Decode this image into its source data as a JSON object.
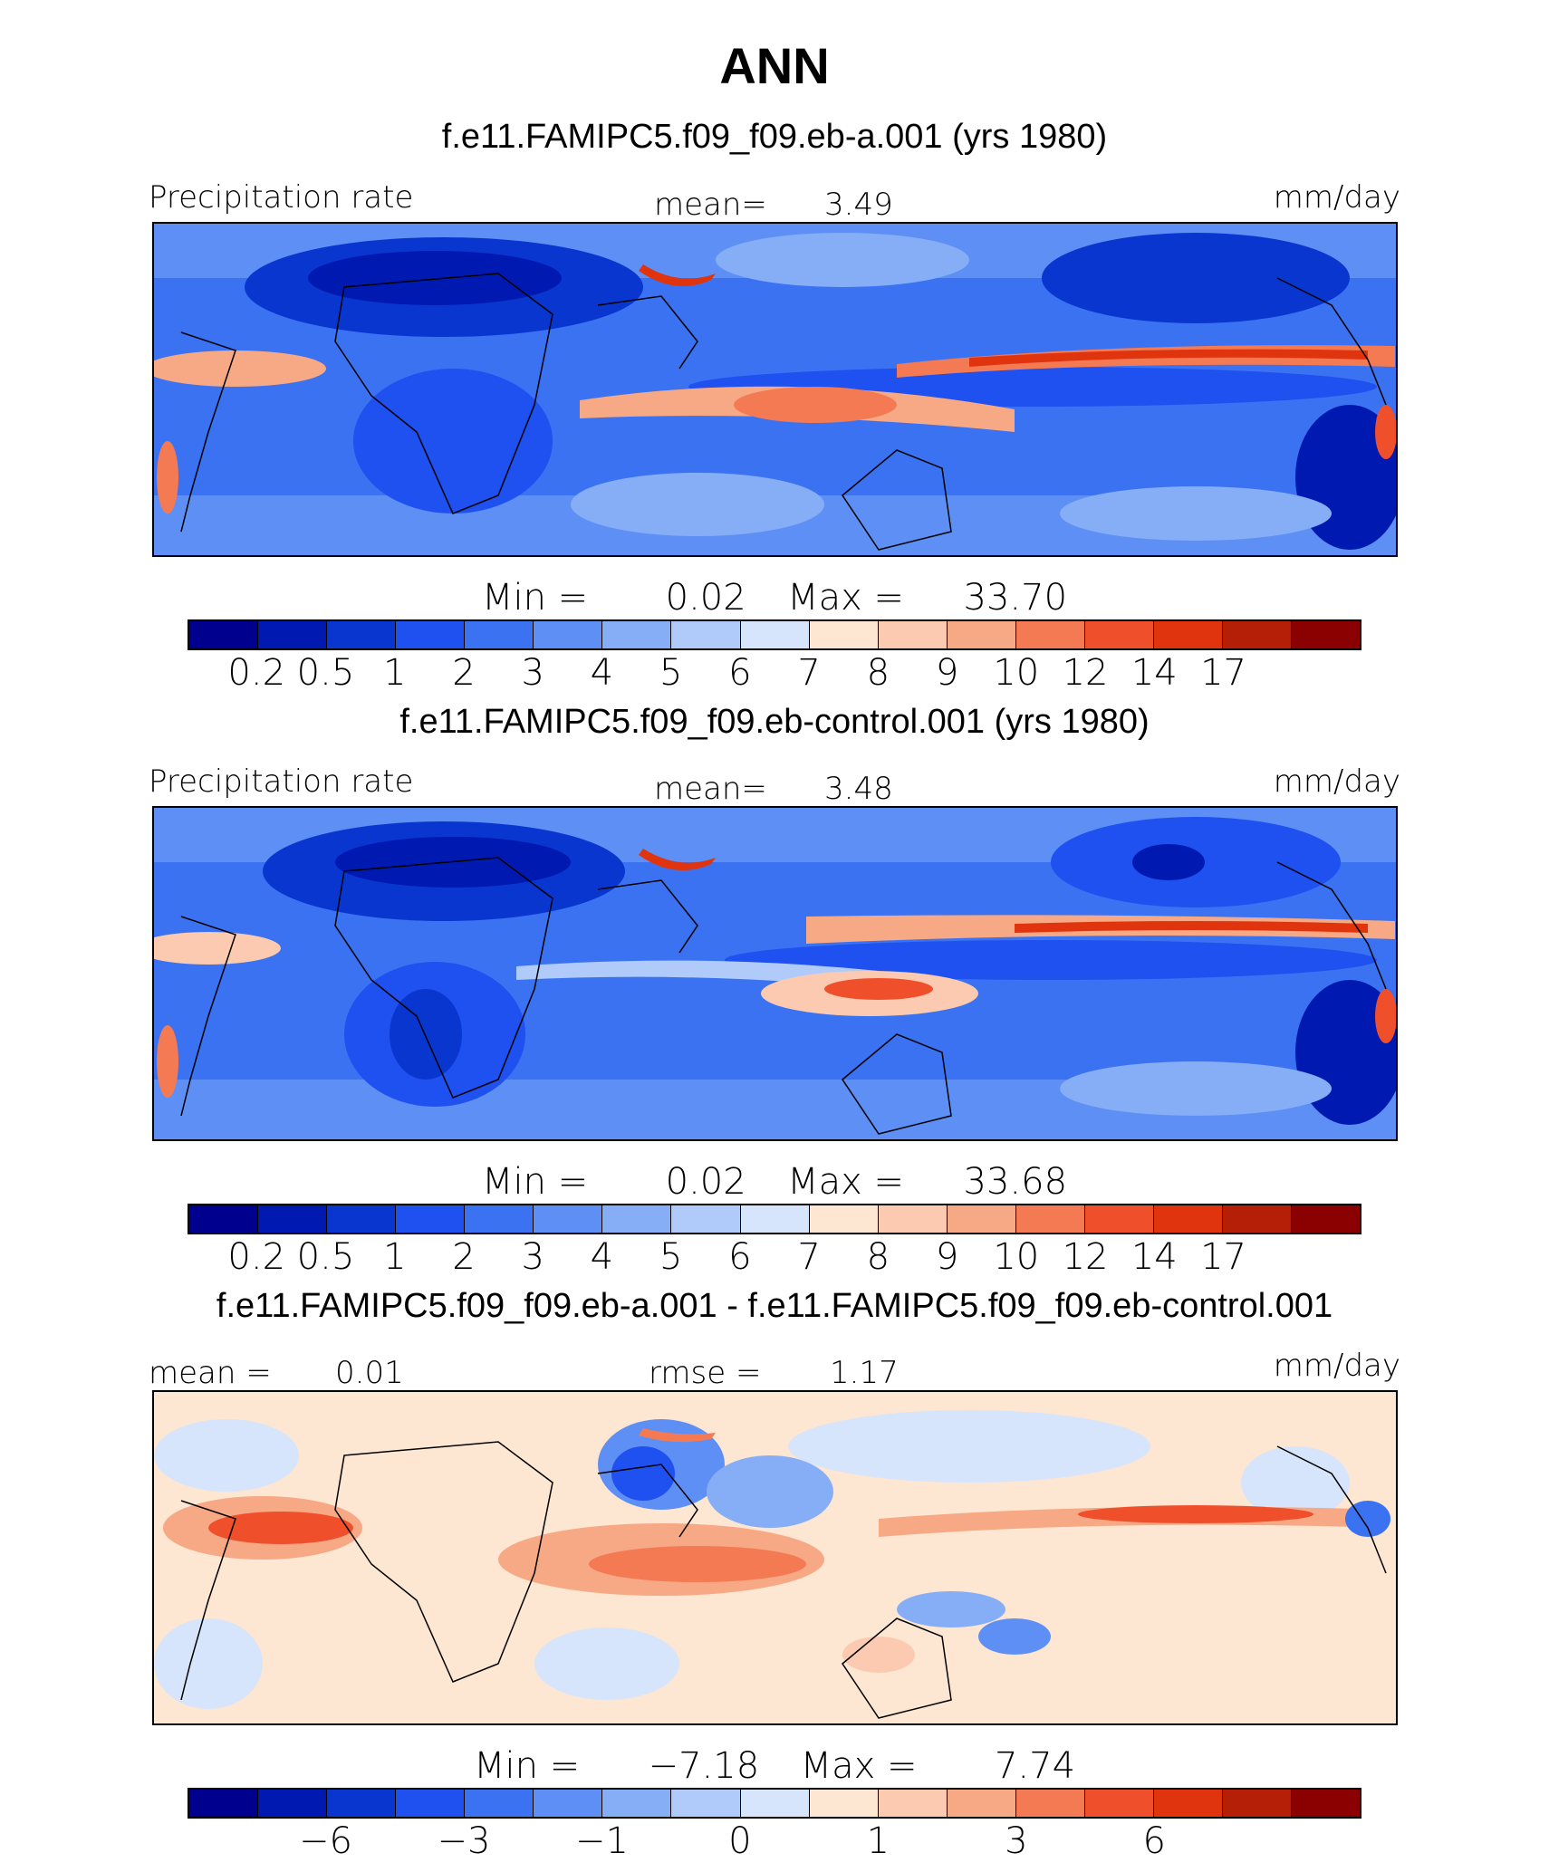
{
  "season_title": "ANN",
  "units": "mm/day",
  "colors": {
    "precip_levels": [
      "#00008f",
      "#0019b0",
      "#0a36d0",
      "#1f50f0",
      "#3a72f2",
      "#5e8ff4",
      "#86aef7",
      "#b0cbfa",
      "#d6e5fb",
      "#fde6d2",
      "#fbcab0",
      "#f7a884",
      "#f47a54",
      "#f04f2c",
      "#e0340f",
      "#b51f08",
      "#8b0000"
    ],
    "diff_levels": [
      "#00008f",
      "#0019b0",
      "#0a36d0",
      "#1f50f0",
      "#3a72f2",
      "#5e8ff4",
      "#86aef7",
      "#b0cbfa",
      "#d6e5fb",
      "#fde6d2",
      "#fbcab0",
      "#f7a884",
      "#f47a54",
      "#f04f2c",
      "#e0340f",
      "#b51f08",
      "#8b0000"
    ]
  },
  "chart_data": [
    {
      "type": "heatmap",
      "panel": "test",
      "case_title": "f.e11.FAMIPC5.f09_f09.eb-a.001 (yrs 1980)",
      "variable_label": "Precipitation rate",
      "mean_label": "mean=",
      "mean_value": "3.49",
      "units": "mm/day",
      "min_label": "Min =",
      "min_value": "0.02",
      "max_label": "Max =",
      "max_value": "33.70",
      "colorbar_ticks": [
        "0.2",
        "0.5",
        "1",
        "2",
        "3",
        "4",
        "5",
        "6",
        "7",
        "8",
        "9",
        "10",
        "12",
        "14",
        "17"
      ],
      "colorbar_levels": [
        0.2,
        0.5,
        1,
        2,
        3,
        4,
        5,
        6,
        7,
        8,
        9,
        10,
        12,
        14,
        17
      ]
    },
    {
      "type": "heatmap",
      "panel": "control",
      "case_title": "f.e11.FAMIPC5.f09_f09.eb-control.001 (yrs 1980)",
      "variable_label": "Precipitation rate",
      "mean_label": "mean=",
      "mean_value": "3.48",
      "units": "mm/day",
      "min_label": "Min =",
      "min_value": "0.02",
      "max_label": "Max =",
      "max_value": "33.68",
      "colorbar_ticks": [
        "0.2",
        "0.5",
        "1",
        "2",
        "3",
        "4",
        "5",
        "6",
        "7",
        "8",
        "9",
        "10",
        "12",
        "14",
        "17"
      ],
      "colorbar_levels": [
        0.2,
        0.5,
        1,
        2,
        3,
        4,
        5,
        6,
        7,
        8,
        9,
        10,
        12,
        14,
        17
      ]
    },
    {
      "type": "heatmap",
      "panel": "difference",
      "case_title": "f.e11.FAMIPC5.f09_f09.eb-a.001 - f.e11.FAMIPC5.f09_f09.eb-control.001",
      "mean_label": "mean =",
      "mean_value": "0.01",
      "rmse_label": "rmse =",
      "rmse_value": "1.17",
      "units": "mm/day",
      "min_label": "Min =",
      "min_value": "−7.18",
      "max_label": "Max =",
      "max_value": "7.74",
      "colorbar_ticks": [
        "−6",
        "−3",
        "−1",
        "0",
        "1",
        "3",
        "6"
      ],
      "colorbar_tick_boundaries": [
        2,
        4,
        6,
        8,
        10,
        12,
        14
      ]
    }
  ]
}
